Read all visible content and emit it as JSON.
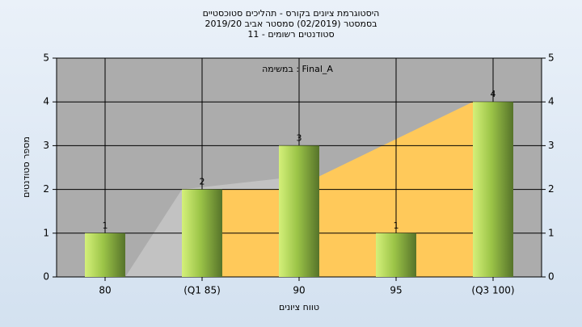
{
  "chart_data": {
    "type": "bar",
    "title": [
      "היסטוגרמת ציונים בקורס - תהליכים סטוכסטיים",
      "בסמסטר  (02/2019)  סמסטר אביב 2019/20",
      "סטודנטים רשומים - 11"
    ],
    "annotation": "במשימה : Final_A",
    "x_label": "טווח ציונים",
    "y_label": "מספר סטודנטים",
    "categories": [
      "80",
      "(Q1 85)",
      "90",
      "95",
      "(Q3 100)"
    ],
    "values": [
      1,
      2,
      3,
      1,
      4
    ],
    "ylim": [
      0,
      5
    ],
    "yticks": [
      0,
      1,
      2,
      3,
      4,
      5
    ],
    "grid": true
  }
}
